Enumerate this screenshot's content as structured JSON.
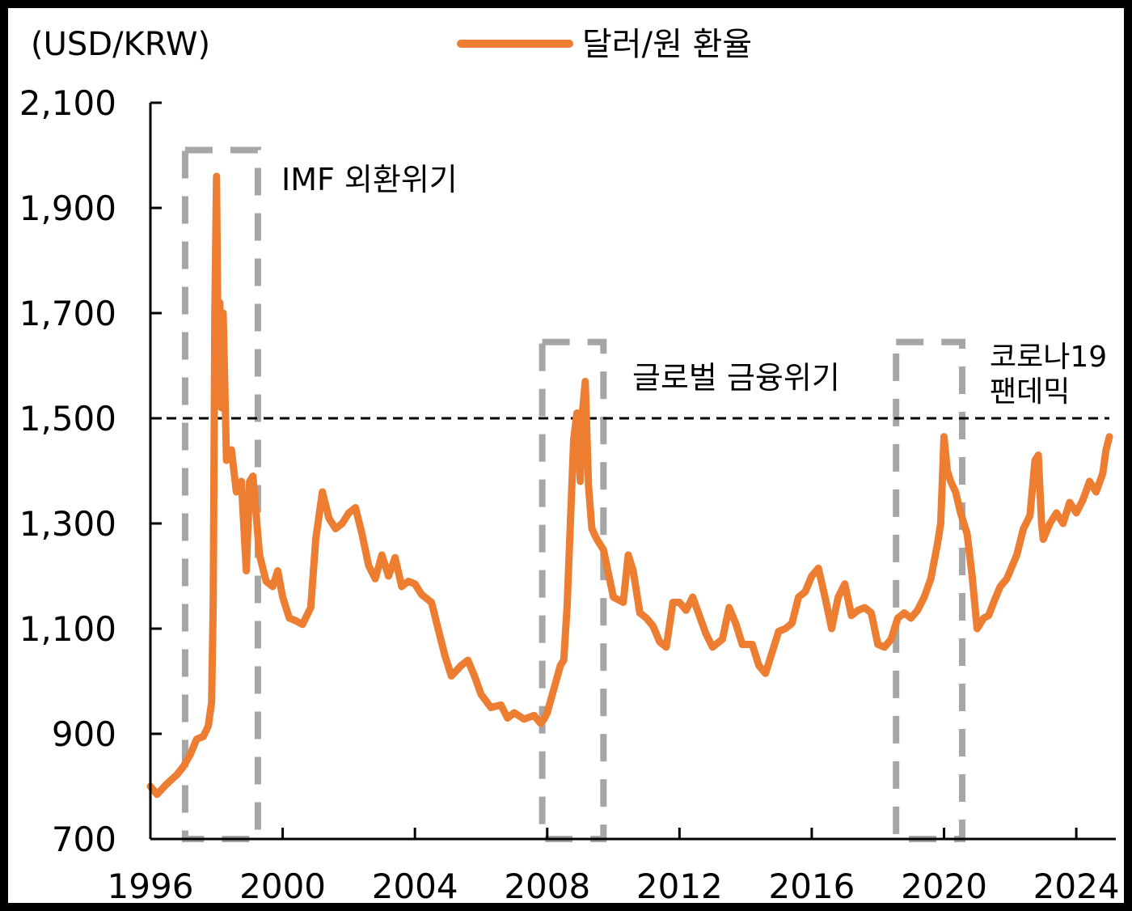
{
  "chart_data": {
    "type": "line",
    "ylabel": "(USD/KRW)",
    "ylim": [
      700,
      2100
    ],
    "xlim": [
      1996.0,
      2025.0
    ],
    "y_ticks": [
      {
        "value": 700,
        "label": "700"
      },
      {
        "value": 900,
        "label": "900"
      },
      {
        "value": 1100,
        "label": "1,100"
      },
      {
        "value": 1300,
        "label": "1,300"
      },
      {
        "value": 1500,
        "label": "1,500"
      },
      {
        "value": 1700,
        "label": "1,700"
      },
      {
        "value": 1900,
        "label": "1,900"
      },
      {
        "value": 2100,
        "label": "2,100"
      }
    ],
    "x_ticks": [
      {
        "value": 1996,
        "label": "1996"
      },
      {
        "value": 2000,
        "label": "2000"
      },
      {
        "value": 2004,
        "label": "2004"
      },
      {
        "value": 2008,
        "label": "2008"
      },
      {
        "value": 2012,
        "label": "2012"
      },
      {
        "value": 2016,
        "label": "2016"
      },
      {
        "value": 2020,
        "label": "2020"
      },
      {
        "value": 2024,
        "label": "2024"
      }
    ],
    "legend": {
      "label": "달러/원 환율",
      "position": "top-center"
    },
    "reference_line": {
      "value": 1500,
      "style": "dashed",
      "color": "#000000"
    },
    "series": [
      {
        "name": "달러/원 환율",
        "color": "#ED7D31",
        "points": [
          [
            1996.0,
            800
          ],
          [
            1996.2,
            785
          ],
          [
            1996.5,
            805
          ],
          [
            1996.8,
            822
          ],
          [
            1997.0,
            838
          ],
          [
            1997.2,
            860
          ],
          [
            1997.4,
            890
          ],
          [
            1997.6,
            895
          ],
          [
            1997.75,
            915
          ],
          [
            1997.85,
            960
          ],
          [
            1997.9,
            1150
          ],
          [
            1997.95,
            1700
          ],
          [
            1998.0,
            1960
          ],
          [
            1998.05,
            1600
          ],
          [
            1998.1,
            1720
          ],
          [
            1998.15,
            1520
          ],
          [
            1998.2,
            1700
          ],
          [
            1998.3,
            1420
          ],
          [
            1998.45,
            1440
          ],
          [
            1998.6,
            1360
          ],
          [
            1998.75,
            1380
          ],
          [
            1998.9,
            1210
          ],
          [
            1999.0,
            1380
          ],
          [
            1999.1,
            1390
          ],
          [
            1999.3,
            1240
          ],
          [
            1999.5,
            1190
          ],
          [
            1999.7,
            1180
          ],
          [
            1999.85,
            1210
          ],
          [
            2000.0,
            1160
          ],
          [
            2000.2,
            1120
          ],
          [
            2000.4,
            1115
          ],
          [
            2000.6,
            1108
          ],
          [
            2000.85,
            1140
          ],
          [
            2001.0,
            1270
          ],
          [
            2001.2,
            1360
          ],
          [
            2001.4,
            1310
          ],
          [
            2001.6,
            1290
          ],
          [
            2001.8,
            1300
          ],
          [
            2002.0,
            1320
          ],
          [
            2002.2,
            1330
          ],
          [
            2002.4,
            1280
          ],
          [
            2002.6,
            1220
          ],
          [
            2002.8,
            1195
          ],
          [
            2003.0,
            1240
          ],
          [
            2003.2,
            1200
          ],
          [
            2003.4,
            1235
          ],
          [
            2003.6,
            1180
          ],
          [
            2003.8,
            1190
          ],
          [
            2004.0,
            1185
          ],
          [
            2004.2,
            1165
          ],
          [
            2004.5,
            1150
          ],
          [
            2004.7,
            1100
          ],
          [
            2004.9,
            1050
          ],
          [
            2005.1,
            1010
          ],
          [
            2005.4,
            1030
          ],
          [
            2005.6,
            1040
          ],
          [
            2005.8,
            1010
          ],
          [
            2006.0,
            975
          ],
          [
            2006.3,
            950
          ],
          [
            2006.6,
            955
          ],
          [
            2006.8,
            930
          ],
          [
            2007.0,
            940
          ],
          [
            2007.3,
            928
          ],
          [
            2007.6,
            935
          ],
          [
            2007.8,
            920
          ],
          [
            2007.9,
            928
          ],
          [
            2008.0,
            940
          ],
          [
            2008.2,
            985
          ],
          [
            2008.4,
            1030
          ],
          [
            2008.5,
            1040
          ],
          [
            2008.6,
            1140
          ],
          [
            2008.7,
            1300
          ],
          [
            2008.8,
            1460
          ],
          [
            2008.9,
            1510
          ],
          [
            2009.0,
            1380
          ],
          [
            2009.05,
            1500
          ],
          [
            2009.15,
            1570
          ],
          [
            2009.25,
            1370
          ],
          [
            2009.35,
            1290
          ],
          [
            2009.5,
            1270
          ],
          [
            2009.7,
            1250
          ],
          [
            2010.0,
            1160
          ],
          [
            2010.3,
            1150
          ],
          [
            2010.45,
            1240
          ],
          [
            2010.6,
            1210
          ],
          [
            2010.8,
            1130
          ],
          [
            2011.0,
            1120
          ],
          [
            2011.2,
            1105
          ],
          [
            2011.4,
            1075
          ],
          [
            2011.6,
            1065
          ],
          [
            2011.8,
            1150
          ],
          [
            2012.0,
            1150
          ],
          [
            2012.2,
            1135
          ],
          [
            2012.4,
            1160
          ],
          [
            2012.6,
            1125
          ],
          [
            2012.8,
            1090
          ],
          [
            2013.0,
            1065
          ],
          [
            2013.3,
            1080
          ],
          [
            2013.5,
            1140
          ],
          [
            2013.7,
            1110
          ],
          [
            2013.9,
            1070
          ],
          [
            2014.2,
            1070
          ],
          [
            2014.4,
            1030
          ],
          [
            2014.6,
            1015
          ],
          [
            2014.8,
            1055
          ],
          [
            2015.0,
            1095
          ],
          [
            2015.2,
            1100
          ],
          [
            2015.4,
            1110
          ],
          [
            2015.6,
            1160
          ],
          [
            2015.8,
            1170
          ],
          [
            2016.0,
            1200
          ],
          [
            2016.2,
            1215
          ],
          [
            2016.4,
            1160
          ],
          [
            2016.6,
            1100
          ],
          [
            2016.8,
            1160
          ],
          [
            2017.0,
            1185
          ],
          [
            2017.2,
            1125
          ],
          [
            2017.4,
            1135
          ],
          [
            2017.6,
            1140
          ],
          [
            2017.8,
            1130
          ],
          [
            2018.0,
            1070
          ],
          [
            2018.2,
            1065
          ],
          [
            2018.4,
            1080
          ],
          [
            2018.6,
            1120
          ],
          [
            2018.8,
            1130
          ],
          [
            2019.0,
            1120
          ],
          [
            2019.2,
            1135
          ],
          [
            2019.4,
            1160
          ],
          [
            2019.6,
            1195
          ],
          [
            2019.8,
            1260
          ],
          [
            2019.9,
            1300
          ],
          [
            2020.0,
            1465
          ],
          [
            2020.1,
            1400
          ],
          [
            2020.2,
            1380
          ],
          [
            2020.35,
            1360
          ],
          [
            2020.5,
            1320
          ],
          [
            2020.7,
            1280
          ],
          [
            2020.85,
            1200
          ],
          [
            2021.0,
            1100
          ],
          [
            2021.1,
            1110
          ],
          [
            2021.2,
            1120
          ],
          [
            2021.35,
            1125
          ],
          [
            2021.5,
            1150
          ],
          [
            2021.7,
            1180
          ],
          [
            2021.9,
            1195
          ],
          [
            2022.0,
            1210
          ],
          [
            2022.2,
            1240
          ],
          [
            2022.4,
            1290
          ],
          [
            2022.6,
            1315
          ],
          [
            2022.75,
            1420
          ],
          [
            2022.85,
            1430
          ],
          [
            2022.95,
            1300
          ],
          [
            2023.0,
            1270
          ],
          [
            2023.2,
            1300
          ],
          [
            2023.4,
            1320
          ],
          [
            2023.6,
            1300
          ],
          [
            2023.8,
            1340
          ],
          [
            2024.0,
            1320
          ],
          [
            2024.2,
            1345
          ],
          [
            2024.4,
            1380
          ],
          [
            2024.6,
            1360
          ],
          [
            2024.8,
            1395
          ],
          [
            2024.9,
            1440
          ],
          [
            2025.0,
            1465
          ]
        ]
      }
    ],
    "highlight_boxes": [
      {
        "x_start": 1997.05,
        "x_end": 1999.25,
        "y_start": 700,
        "y_end": 2010,
        "label": "IMF 외환위기"
      },
      {
        "x_start": 2007.85,
        "x_end": 2009.7,
        "y_start": 700,
        "y_end": 1645,
        "label": "글로벌 금융위기"
      },
      {
        "x_start": 2018.55,
        "x_end": 2020.55,
        "y_start": 700,
        "y_end": 1645,
        "label": "코로나19 팬데믹"
      }
    ],
    "annotations": [
      {
        "text": "IMF 외환위기"
      },
      {
        "text": "글로벌 금융위기"
      },
      {
        "lines": [
          "코로나19",
          "팬데믹"
        ]
      }
    ]
  }
}
